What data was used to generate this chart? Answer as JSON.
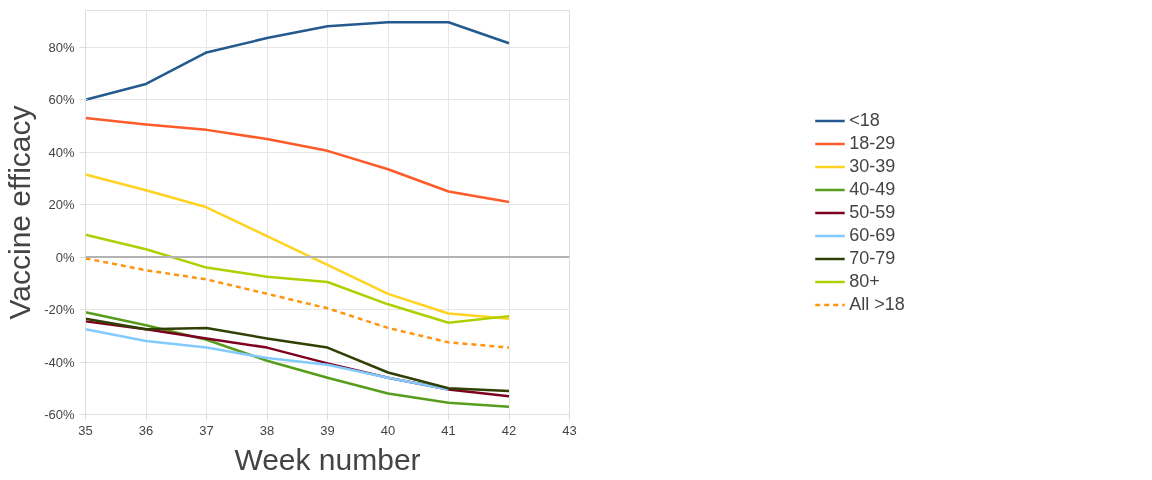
{
  "chart_data": {
    "type": "line",
    "xlabel": "Week number",
    "ylabel": "Vaccine efficacy",
    "x": [
      35,
      36,
      37,
      38,
      39,
      40,
      41,
      42
    ],
    "xlim": [
      35,
      43
    ],
    "xticks": [
      35,
      36,
      37,
      38,
      39,
      40,
      41,
      42,
      43
    ],
    "ylim": [
      -60,
      94
    ],
    "yticks": [
      {
        "value": -60,
        "label": "-60%"
      },
      {
        "value": -40,
        "label": "-40%"
      },
      {
        "value": -20,
        "label": "-20%"
      },
      {
        "value": 0,
        "label": "0%"
      },
      {
        "value": 20,
        "label": "20%"
      },
      {
        "value": 40,
        "label": "40%"
      },
      {
        "value": 60,
        "label": "60%"
      },
      {
        "value": 80,
        "label": "80%"
      }
    ],
    "grid": true,
    "legend": "right",
    "marker": "none",
    "ref_lines": [
      {
        "axis": "y",
        "value": 0,
        "label": null,
        "color": "#b3b3b3"
      }
    ],
    "series": [
      {
        "name": "<18",
        "color": "#245a8e",
        "values": [
          60,
          66,
          78,
          83.5,
          88,
          89.5,
          89.5,
          81.5
        ]
      },
      {
        "name": "18-29",
        "color": "#ff5a2a",
        "values": [
          53,
          50.5,
          48.5,
          45,
          40.5,
          33.5,
          25,
          21
        ]
      },
      {
        "name": "30-39",
        "color": "#ffd320",
        "values": [
          31.5,
          25.5,
          19,
          8,
          -3,
          -14,
          -21.5,
          -23.5
        ]
      },
      {
        "name": "40-49",
        "color": "#579d1c",
        "values": [
          -21,
          -26,
          -31.5,
          -39.5,
          -46,
          -52,
          -55.5,
          -57
        ]
      },
      {
        "name": "50-59",
        "color": "#7e0021",
        "values": [
          -24.5,
          -27.5,
          -31,
          -34.5,
          -40.5,
          -46,
          -50.5,
          -53
        ]
      },
      {
        "name": "60-69",
        "color": "#83caff",
        "values": [
          -27.5,
          -32,
          -34.5,
          -38.5,
          -41,
          -46,
          -50.5,
          null
        ]
      },
      {
        "name": "70-79",
        "color": "#314004",
        "values": [
          -23.5,
          -27.5,
          -27,
          -31,
          -34.5,
          -44,
          -50,
          -51
        ]
      },
      {
        "name": "80+",
        "color": "#aecf00",
        "values": [
          8.5,
          3,
          -4,
          -7.5,
          -9.5,
          -18,
          -25,
          -22.5
        ]
      },
      {
        "name": "All >18",
        "color": "#ff950e",
        "line_style": "dashed",
        "values": [
          -0.5,
          -5,
          -8.5,
          -14,
          -19.5,
          -27,
          -32.5,
          -34.5
        ]
      }
    ]
  }
}
